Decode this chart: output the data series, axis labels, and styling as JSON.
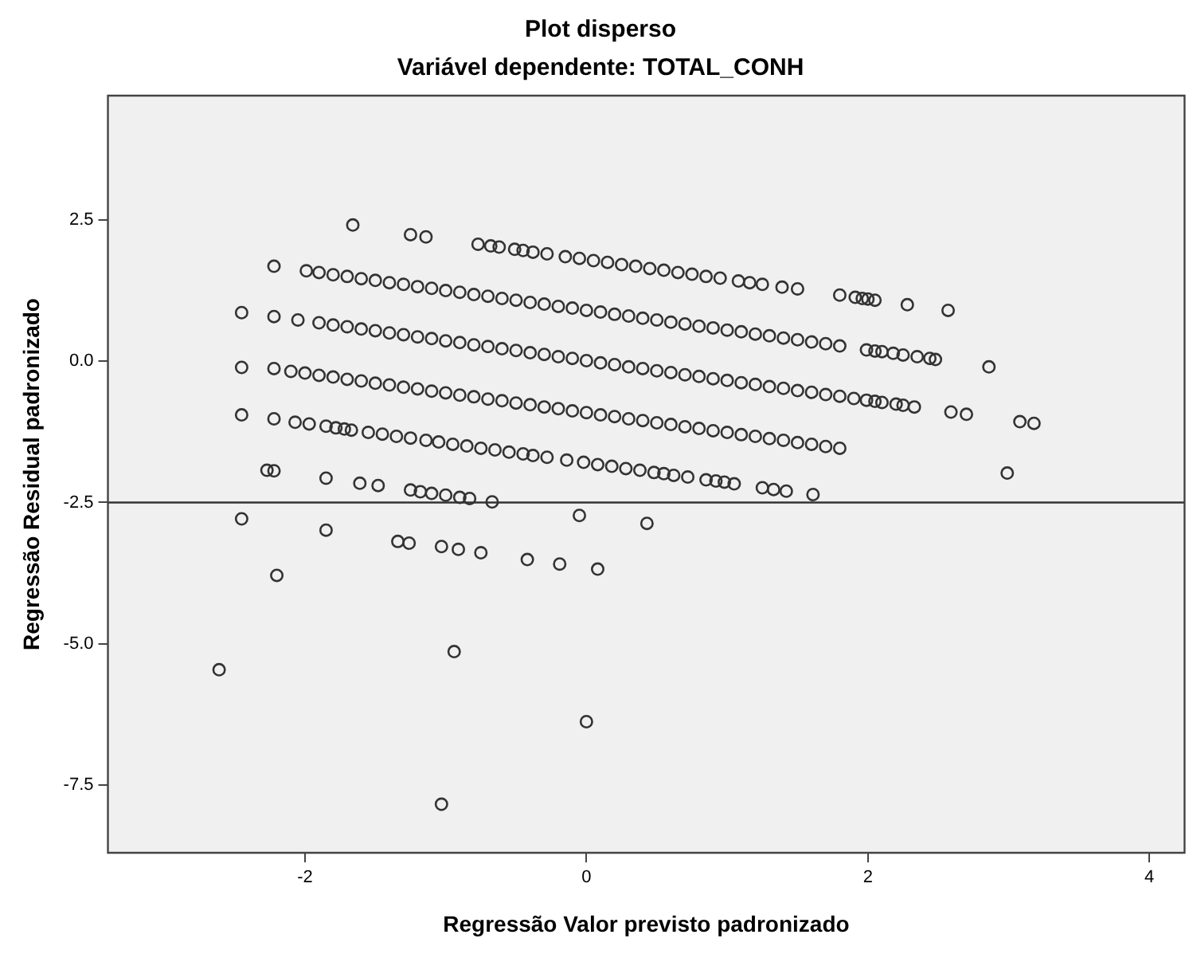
{
  "chart_data": {
    "type": "scatter",
    "title": "Plot disperso",
    "subtitle": "Variável dependente: TOTAL_CONH",
    "xlabel": "Regressão Valor previsto padronizado",
    "ylabel": "Regressão Residual padronizado",
    "xlim": [
      -3.4,
      4.25
    ],
    "ylim": [
      -8.7,
      4.7
    ],
    "xticks": [
      -2,
      0,
      2,
      4
    ],
    "yticks": [
      {
        "value": 2.5,
        "label": "2.5"
      },
      {
        "value": 0,
        "label": "0.0"
      },
      {
        "value": -2.5,
        "label": "-2.5"
      },
      {
        "value": -5,
        "label": "-5.0"
      },
      {
        "value": -7.5,
        "label": "-7.5"
      }
    ],
    "legend": false,
    "marker": "circle",
    "ref_lines": [
      {
        "axis": "y",
        "value": -2.5,
        "color": "#333333"
      }
    ],
    "series": [
      {
        "color": "#333333",
        "x": [
          -1.66,
          -1.25,
          -1.14,
          -0.77,
          -0.68,
          -0.62,
          -0.51,
          -0.45,
          -0.38,
          -0.28,
          -0.15,
          -0.05,
          0.05,
          0.15,
          0.25,
          0.35,
          0.45,
          0.55,
          0.65,
          0.75,
          0.85,
          0.95,
          1.08,
          1.16,
          1.25,
          1.39,
          1.5,
          1.8,
          1.91,
          1.96,
          2.0,
          2.05,
          2.28,
          2.57,
          -2.22,
          -1.99,
          -1.9,
          -1.8,
          -1.7,
          -1.6,
          -1.5,
          -1.4,
          -1.3,
          -1.2,
          -1.1,
          -1.0,
          -0.9,
          -0.8,
          -0.7,
          -0.6,
          -0.5,
          -0.4,
          -0.3,
          -0.2,
          -0.1,
          0,
          0.1,
          0.2,
          0.3,
          0.4,
          0.5,
          0.6,
          0.7,
          0.8,
          0.9,
          1.0,
          1.1,
          1.2,
          1.3,
          1.4,
          1.5,
          1.6,
          1.7,
          1.8,
          1.99,
          2.05,
          2.1,
          2.18,
          2.25,
          2.35,
          2.44,
          2.48,
          2.86,
          -2.45,
          -2.22,
          -2.05,
          -1.9,
          -1.8,
          -1.7,
          -1.6,
          -1.5,
          -1.4,
          -1.3,
          -1.2,
          -1.1,
          -1.0,
          -0.9,
          -0.8,
          -0.7,
          -0.6,
          -0.5,
          -0.4,
          -0.3,
          -0.2,
          -0.1,
          0,
          0.1,
          0.2,
          0.3,
          0.4,
          0.5,
          0.6,
          0.7,
          0.8,
          0.9,
          1.0,
          1.1,
          1.2,
          1.3,
          1.4,
          1.5,
          1.6,
          1.7,
          1.8,
          1.9,
          1.99,
          2.05,
          2.1,
          2.2,
          2.25,
          2.33,
          2.59,
          2.7,
          3.08,
          3.18,
          -2.45,
          -2.22,
          -2.1,
          -2.0,
          -1.9,
          -1.8,
          -1.7,
          -1.6,
          -1.5,
          -1.4,
          -1.3,
          -1.2,
          -1.1,
          -1.0,
          -0.9,
          -0.8,
          -0.7,
          -0.6,
          -0.5,
          -0.4,
          -0.3,
          -0.2,
          -0.1,
          0,
          0.1,
          0.2,
          0.3,
          0.4,
          0.5,
          0.6,
          0.7,
          0.8,
          0.9,
          1.0,
          1.1,
          1.2,
          1.3,
          1.4,
          1.5,
          1.6,
          1.7,
          1.8,
          2.99,
          -2.45,
          -2.22,
          -2.07,
          -1.97,
          -1.85,
          -1.78,
          -1.72,
          -1.67,
          -1.55,
          -1.45,
          -1.35,
          -1.25,
          -1.14,
          -1.05,
          -0.95,
          -0.85,
          -0.75,
          -0.65,
          -0.55,
          -0.45,
          -0.38,
          -0.28,
          -0.14,
          -0.02,
          0.08,
          0.18,
          0.28,
          0.38,
          0.48,
          0.55,
          0.62,
          0.72,
          0.85,
          0.92,
          0.98,
          1.05,
          1.25,
          1.33,
          1.42,
          1.61,
          -2.27,
          -2.22,
          -1.85,
          -1.61,
          -1.48,
          -1.25,
          -1.18,
          -1.1,
          -1.0,
          -0.9,
          -0.83,
          -0.67,
          -0.05,
          0.43,
          -2.45,
          -1.85,
          -2.2,
          -1.34,
          -1.26,
          -1.03,
          -0.91,
          -0.75,
          -0.42,
          -0.19,
          0.08,
          -2.61,
          -0.94,
          0.0,
          -1.03
        ],
        "values": [
          2.41,
          2.24,
          2.2,
          2.07,
          2.04,
          2.02,
          1.98,
          1.96,
          1.93,
          1.9,
          1.85,
          1.82,
          1.78,
          1.75,
          1.71,
          1.68,
          1.64,
          1.61,
          1.57,
          1.54,
          1.5,
          1.47,
          1.42,
          1.39,
          1.36,
          1.31,
          1.28,
          1.17,
          1.13,
          1.11,
          1.1,
          1.08,
          1.0,
          0.9,
          1.68,
          1.6,
          1.57,
          1.53,
          1.5,
          1.46,
          1.43,
          1.39,
          1.36,
          1.32,
          1.29,
          1.25,
          1.22,
          1.18,
          1.15,
          1.11,
          1.08,
          1.04,
          1.01,
          0.97,
          0.94,
          0.9,
          0.87,
          0.83,
          0.8,
          0.76,
          0.73,
          0.69,
          0.66,
          0.62,
          0.59,
          0.55,
          0.52,
          0.48,
          0.45,
          0.41,
          0.38,
          0.34,
          0.31,
          0.27,
          0.2,
          0.18,
          0.17,
          0.14,
          0.11,
          0.08,
          0.05,
          0.03,
          -0.1,
          0.86,
          0.79,
          0.73,
          0.68,
          0.64,
          0.61,
          0.57,
          0.54,
          0.5,
          0.47,
          0.43,
          0.4,
          0.36,
          0.33,
          0.29,
          0.26,
          0.22,
          0.19,
          0.15,
          0.12,
          0.08,
          0.05,
          0.01,
          -0.03,
          -0.06,
          -0.1,
          -0.13,
          -0.17,
          -0.2,
          -0.24,
          -0.27,
          -0.31,
          -0.34,
          -0.38,
          -0.41,
          -0.45,
          -0.48,
          -0.52,
          -0.55,
          -0.59,
          -0.62,
          -0.66,
          -0.69,
          -0.71,
          -0.73,
          -0.76,
          -0.78,
          -0.81,
          -0.9,
          -0.94,
          -1.07,
          -1.1,
          -0.11,
          -0.13,
          -0.18,
          -0.21,
          -0.25,
          -0.28,
          -0.32,
          -0.35,
          -0.39,
          -0.42,
          -0.46,
          -0.49,
          -0.53,
          -0.56,
          -0.6,
          -0.63,
          -0.67,
          -0.7,
          -0.74,
          -0.77,
          -0.81,
          -0.84,
          -0.88,
          -0.91,
          -0.95,
          -0.98,
          -1.02,
          -1.05,
          -1.09,
          -1.12,
          -1.16,
          -1.19,
          -1.23,
          -1.26,
          -1.3,
          -1.33,
          -1.37,
          -1.4,
          -1.44,
          -1.47,
          -1.51,
          -1.54,
          -1.98,
          -0.95,
          -1.02,
          -1.08,
          -1.11,
          -1.15,
          -1.18,
          -1.2,
          -1.22,
          -1.26,
          -1.29,
          -1.33,
          -1.36,
          -1.4,
          -1.43,
          -1.47,
          -1.5,
          -1.54,
          -1.57,
          -1.61,
          -1.64,
          -1.67,
          -1.7,
          -1.75,
          -1.79,
          -1.83,
          -1.86,
          -1.9,
          -1.93,
          -1.97,
          -1.99,
          -2.02,
          -2.05,
          -2.1,
          -2.12,
          -2.14,
          -2.17,
          -2.24,
          -2.27,
          -2.3,
          -2.36,
          -1.93,
          -1.94,
          -2.07,
          -2.16,
          -2.2,
          -2.28,
          -2.31,
          -2.34,
          -2.37,
          -2.41,
          -2.43,
          -2.49,
          -2.73,
          -2.87,
          -2.79,
          -2.99,
          -3.79,
          -3.19,
          -3.22,
          -3.28,
          -3.33,
          -3.39,
          -3.51,
          -3.59,
          -3.68,
          -5.46,
          -5.14,
          -6.38,
          -7.84
        ]
      }
    ]
  }
}
